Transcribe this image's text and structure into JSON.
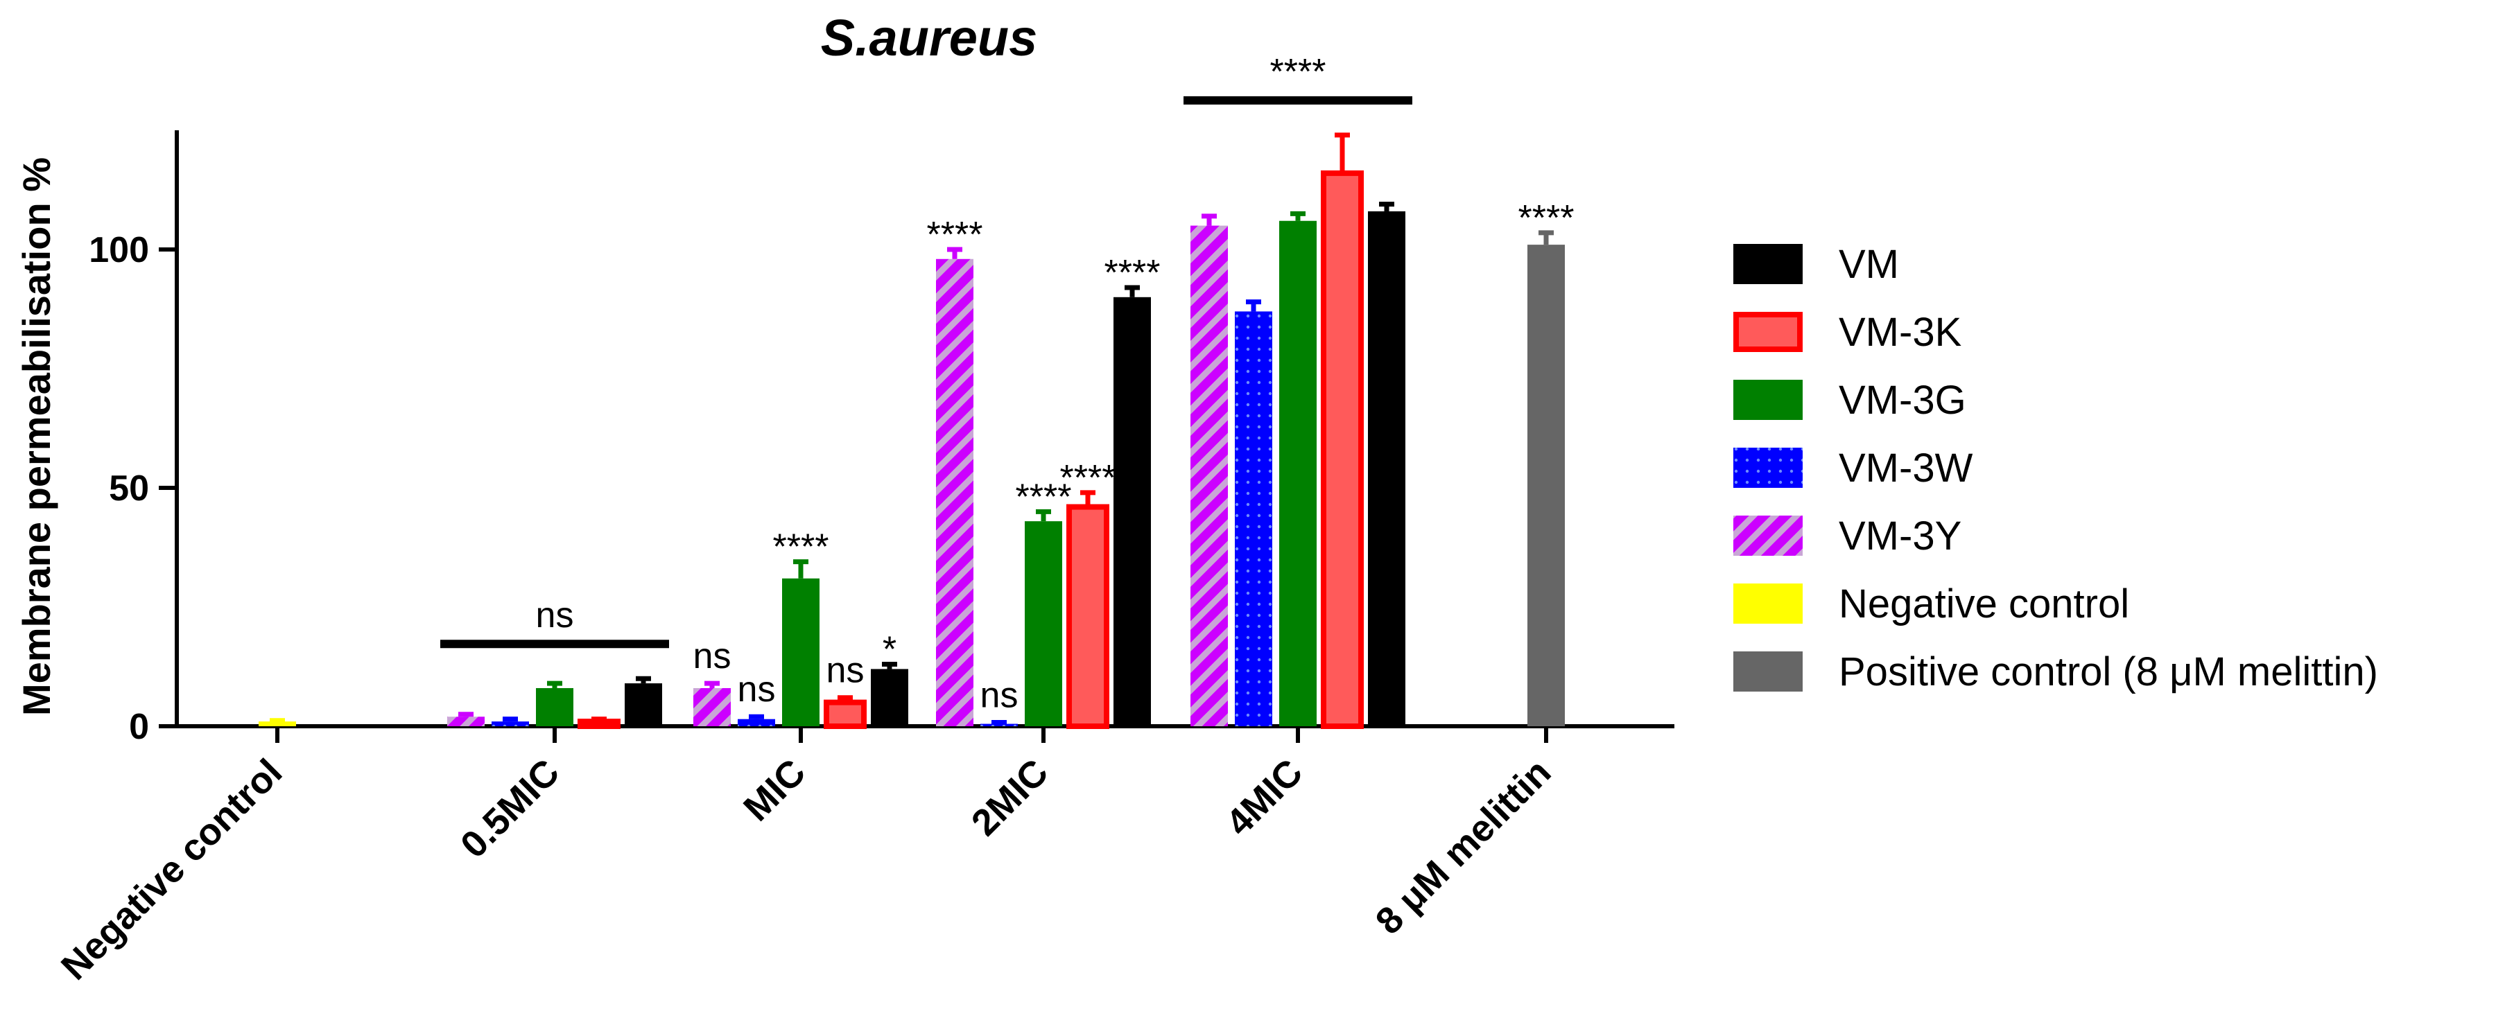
{
  "chart_data": {
    "type": "bar",
    "title": "S.aureus",
    "xlabel": "",
    "ylabel": "Membrane permeabilisation %",
    "ylim": [
      0,
      125
    ],
    "yticks": [
      0,
      50,
      100
    ],
    "categories": [
      "Negative control",
      "0.5MIC",
      "MIC",
      "2MIC",
      "4MIC",
      "8 μM melittin"
    ],
    "grid": false,
    "legend_position": "right",
    "series": [
      {
        "name": "VM-3Y",
        "color": "#cc00ff",
        "pattern": "hatch",
        "values": [
          null,
          2,
          8,
          98,
          105,
          null
        ],
        "errors": [
          null,
          0.5,
          1,
          2,
          2,
          null
        ]
      },
      {
        "name": "VM-3W",
        "color": "#0000ff",
        "pattern": "dots",
        "values": [
          null,
          1,
          1.5,
          0.5,
          87,
          null
        ],
        "errors": [
          null,
          0.5,
          0.5,
          0.3,
          2,
          null
        ]
      },
      {
        "name": "VM-3G",
        "color": "#008000",
        "pattern": "solid",
        "values": [
          null,
          8,
          31,
          43,
          106,
          null
        ],
        "errors": [
          null,
          1,
          3.5,
          2,
          1.5,
          null
        ]
      },
      {
        "name": "VM-3K",
        "color": "#ff0000",
        "pattern": "outlined",
        "values": [
          null,
          1,
          5,
          46,
          116,
          null
        ],
        "errors": [
          null,
          0.5,
          1,
          3,
          8,
          null
        ]
      },
      {
        "name": "VM",
        "color": "#000000",
        "pattern": "solid",
        "values": [
          null,
          9,
          12,
          90,
          108,
          null
        ],
        "errors": [
          null,
          1,
          1,
          2,
          1.5,
          null
        ]
      },
      {
        "name": "Negative control",
        "color": "#ffff00",
        "pattern": "solid",
        "values": [
          1,
          null,
          null,
          null,
          null,
          null
        ],
        "errors": [
          0.2,
          null,
          null,
          null,
          null,
          null
        ]
      },
      {
        "name": "Positive control (8 μM melittin)",
        "color": "#666666",
        "pattern": "solid",
        "values": [
          null,
          null,
          null,
          null,
          null,
          101
        ],
        "errors": [
          null,
          null,
          null,
          null,
          null,
          2.5
        ]
      }
    ],
    "legend": [
      {
        "name": "VM",
        "color": "#000000",
        "pattern": "solid"
      },
      {
        "name": "VM-3K",
        "color": "#ff0000",
        "pattern": "outlined"
      },
      {
        "name": "VM-3G",
        "color": "#008000",
        "pattern": "solid"
      },
      {
        "name": "VM-3W",
        "color": "#0000ff",
        "pattern": "dots"
      },
      {
        "name": "VM-3Y",
        "color": "#cc00ff",
        "pattern": "hatch"
      },
      {
        "name": "Negative control",
        "color": "#ffff00",
        "pattern": "solid"
      },
      {
        "name": "Positive control (8 μM melittin)",
        "color": "#666666",
        "pattern": "solid"
      }
    ],
    "annotations": {
      "bar_labels": [
        {
          "category": "MIC",
          "series": "VM-3Y",
          "text": "ns"
        },
        {
          "category": "MIC",
          "series": "VM-3W",
          "text": "ns"
        },
        {
          "category": "MIC",
          "series": "VM-3G",
          "text": "****"
        },
        {
          "category": "MIC",
          "series": "VM-3K",
          "text": "ns"
        },
        {
          "category": "MIC",
          "series": "VM",
          "text": "*"
        },
        {
          "category": "2MIC",
          "series": "VM-3Y",
          "text": "****"
        },
        {
          "category": "2MIC",
          "series": "VM-3W",
          "text": "ns"
        },
        {
          "category": "2MIC",
          "series": "VM-3G",
          "text": "****"
        },
        {
          "category": "2MIC",
          "series": "VM-3K",
          "text": "****"
        },
        {
          "category": "2MIC",
          "series": "VM",
          "text": "****"
        },
        {
          "category": "8 μM melittin",
          "series": "Positive control (8 μM melittin)",
          "text": "****"
        }
      ],
      "group_brackets": [
        {
          "category": "0.5MIC",
          "text": "ns"
        },
        {
          "category": "4MIC",
          "text": "****"
        }
      ]
    }
  }
}
